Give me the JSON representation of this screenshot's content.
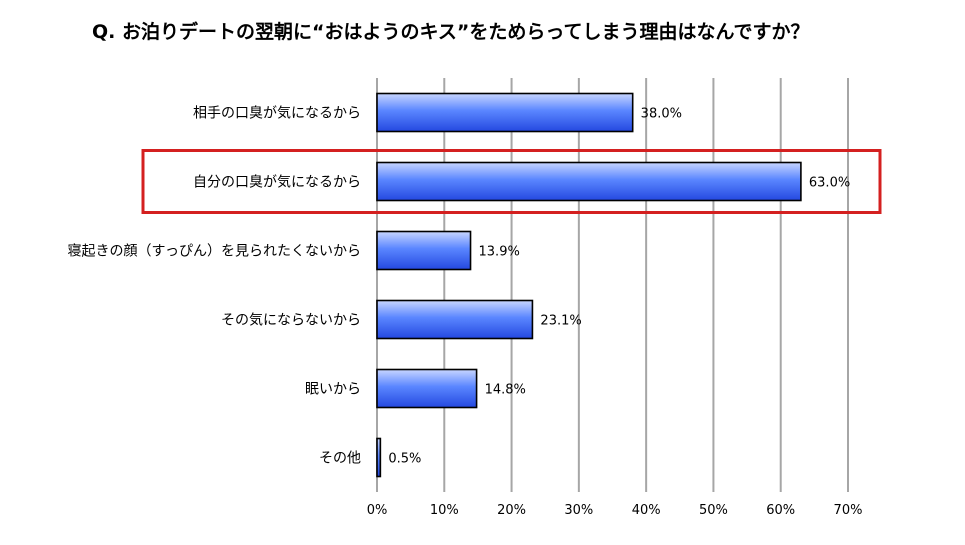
{
  "chart_data": {
    "type": "bar",
    "orientation": "horizontal",
    "title": "Q. お泊りデートの翌朝に“おはようのキス”をためらってしまう理由はなんですか？",
    "categories": [
      "相手の口臭が気になるから",
      "自分の口臭が気になるから",
      "寝起きの顔（すっぴん）を見られたくないから",
      "その気にならないから",
      "眠いから",
      "その他"
    ],
    "values": [
      38.0,
      63.0,
      13.9,
      23.1,
      14.8,
      0.5
    ],
    "value_labels": [
      "38.0%",
      "63.0%",
      "13.9%",
      "23.1%",
      "14.8%",
      "0.5%"
    ],
    "xlim": [
      0,
      70
    ],
    "xticks": [
      "0%",
      "10%",
      "20%",
      "30%",
      "40%",
      "50%",
      "60%",
      "70%"
    ],
    "grid": true,
    "highlight_index": 1,
    "colors": {
      "bar_light": "#c8d6ff",
      "bar_mid": "#5a86ff",
      "bar_dark": "#2448e0",
      "bar_edge": "#000000",
      "grid": "#a6a6a6",
      "highlight": "#d42020"
    }
  }
}
